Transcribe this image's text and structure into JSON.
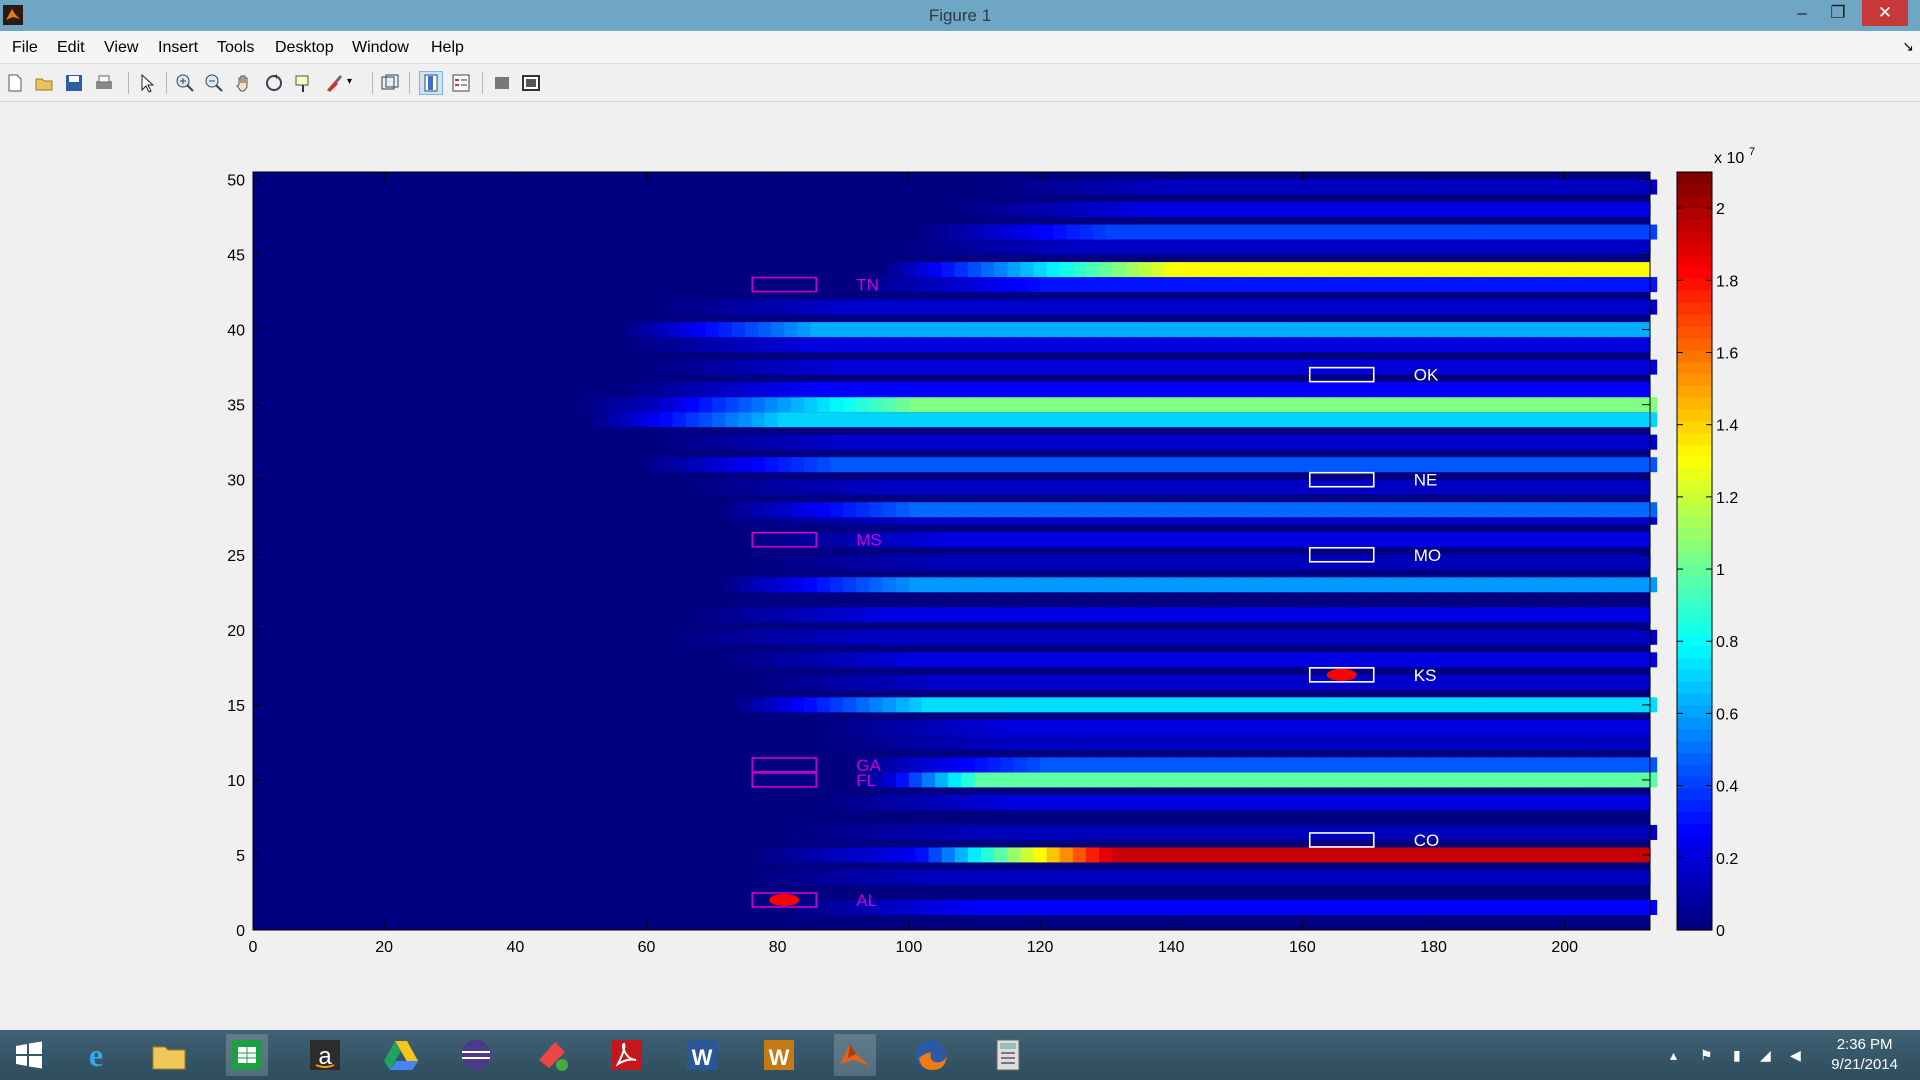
{
  "window": {
    "title": "Figure 1"
  },
  "menu": [
    "File",
    "Edit",
    "View",
    "Insert",
    "Tools",
    "Desktop",
    "Window",
    "Help"
  ],
  "toolbar_icons": [
    "new-figure-icon",
    "open-file-icon",
    "save-icon",
    "print-icon",
    "arrow-pointer-icon",
    "zoom-in-icon",
    "zoom-out-icon",
    "pan-hand-icon",
    "rotate-3d-icon",
    "data-cursor-icon",
    "brush-icon",
    "link-plot-icon",
    "colorbar-toggle-icon",
    "legend-toggle-icon",
    "hide-plot-tools-icon",
    "show-plot-tools-icon"
  ],
  "taskbar": {
    "apps": [
      "windows-start-icon",
      "internet-explorer-icon",
      "file-explorer-icon",
      "spreadsheet-app-icon",
      "amazon-icon",
      "google-drive-icon",
      "eclipse-icon",
      "app-red-icon",
      "adobe-reader-icon",
      "word-icon",
      "office-w-icon",
      "matlab-icon",
      "firefox-icon",
      "calculator-icon"
    ],
    "time": "2:36 PM",
    "date": "9/21/2014"
  },
  "chart_data": {
    "type": "heatmap",
    "x_ticks": [
      "0",
      "20",
      "40",
      "60",
      "80",
      "100",
      "120",
      "140",
      "160",
      "180",
      "200"
    ],
    "y_ticks": [
      "0",
      "5",
      "10",
      "15",
      "20",
      "25",
      "30",
      "35",
      "40",
      "45",
      "50"
    ],
    "xlim": [
      0,
      213
    ],
    "ylim": [
      0,
      50.5
    ],
    "colorbar": {
      "exponent_label": "x 10",
      "exponent": "7",
      "ticks": [
        "0",
        "0.2",
        "0.4",
        "0.6",
        "0.8",
        "1",
        "1.2",
        "1.4",
        "1.6",
        "1.8",
        "2"
      ],
      "range": [
        0,
        2.1
      ]
    },
    "rows": [
      {
        "y": 1.5,
        "start": 80,
        "max": 0.26
      },
      {
        "y": 3.5,
        "start": 75,
        "max": 0.14
      },
      {
        "y": 5,
        "start": 75,
        "max": 1.95,
        "ramp": [
          100,
          130
        ]
      },
      {
        "y": 6.5,
        "start": 80,
        "max": 0.12
      },
      {
        "y": 8.5,
        "start": 85,
        "max": 0.2
      },
      {
        "y": 10,
        "start": 90,
        "max": 0.98,
        "ramp": [
          95,
          110
        ]
      },
      {
        "y": 11,
        "start": 90,
        "max": 0.44
      },
      {
        "y": 12.5,
        "start": 85,
        "max": 0.14
      },
      {
        "y": 13.5,
        "start": 85,
        "max": 0.2
      },
      {
        "y": 15,
        "start": 72,
        "max": 0.72
      },
      {
        "y": 16.5,
        "start": 75,
        "max": 0.16
      },
      {
        "y": 18,
        "start": 70,
        "max": 0.2
      },
      {
        "y": 19.5,
        "start": 62,
        "max": 0.14
      },
      {
        "y": 21,
        "start": 65,
        "max": 0.2
      },
      {
        "y": 23,
        "start": 70,
        "max": 0.58
      },
      {
        "y": 24.5,
        "start": 75,
        "max": 0.12
      },
      {
        "y": 26,
        "start": 75,
        "max": 0.2
      },
      {
        "y": 27.5,
        "start": 70,
        "max": 0.14
      },
      {
        "y": 28,
        "start": 70,
        "max": 0.48
      },
      {
        "y": 29.5,
        "start": 65,
        "max": 0.14
      },
      {
        "y": 31,
        "start": 58,
        "max": 0.44
      },
      {
        "y": 32.5,
        "start": 60,
        "max": 0.16
      },
      {
        "y": 34,
        "start": 50,
        "max": 0.7
      },
      {
        "y": 35,
        "start": 48,
        "max": 1.05,
        "ramp": [
          60,
          100
        ]
      },
      {
        "y": 36,
        "start": 55,
        "max": 0.26
      },
      {
        "y": 37.5,
        "start": 58,
        "max": 0.18
      },
      {
        "y": 39,
        "start": 55,
        "max": 0.2
      },
      {
        "y": 40,
        "start": 55,
        "max": 0.62
      },
      {
        "y": 41.5,
        "start": 60,
        "max": 0.16
      },
      {
        "y": 43,
        "start": 90,
        "max": 0.3
      },
      {
        "y": 44,
        "start": 95,
        "max": 1.32,
        "ramp": [
          100,
          140
        ]
      },
      {
        "y": 45.5,
        "start": 95,
        "max": 0.14
      },
      {
        "y": 46.5,
        "start": 100,
        "max": 0.4
      },
      {
        "y": 48,
        "start": 105,
        "max": 0.2
      },
      {
        "y": 49.5,
        "start": 110,
        "max": 0.14
      }
    ],
    "annotations": [
      {
        "label": "TN",
        "x": 81,
        "y": 43,
        "color": "#cc00cc",
        "marker": false
      },
      {
        "label": "MS",
        "x": 81,
        "y": 26,
        "color": "#cc00cc",
        "marker": false
      },
      {
        "label": "GA",
        "x": 81,
        "y": 11,
        "color": "#cc00cc",
        "marker": false
      },
      {
        "label": "FL",
        "x": 81,
        "y": 10,
        "color": "#cc00cc",
        "marker": false
      },
      {
        "label": "AL",
        "x": 81,
        "y": 2,
        "color": "#cc00cc",
        "marker": true
      },
      {
        "label": "OK",
        "x": 166,
        "y": 37,
        "color": "#ffffff",
        "marker": false
      },
      {
        "label": "NE",
        "x": 166,
        "y": 30,
        "color": "#ffffff",
        "marker": false
      },
      {
        "label": "MO",
        "x": 166,
        "y": 25,
        "color": "#ffffff",
        "marker": false
      },
      {
        "label": "KS",
        "x": 166,
        "y": 17,
        "color": "#ffffff",
        "marker": true
      },
      {
        "label": "CO",
        "x": 166,
        "y": 6,
        "color": "#ffffff",
        "marker": false
      }
    ],
    "marker_color": "#ff0000"
  }
}
